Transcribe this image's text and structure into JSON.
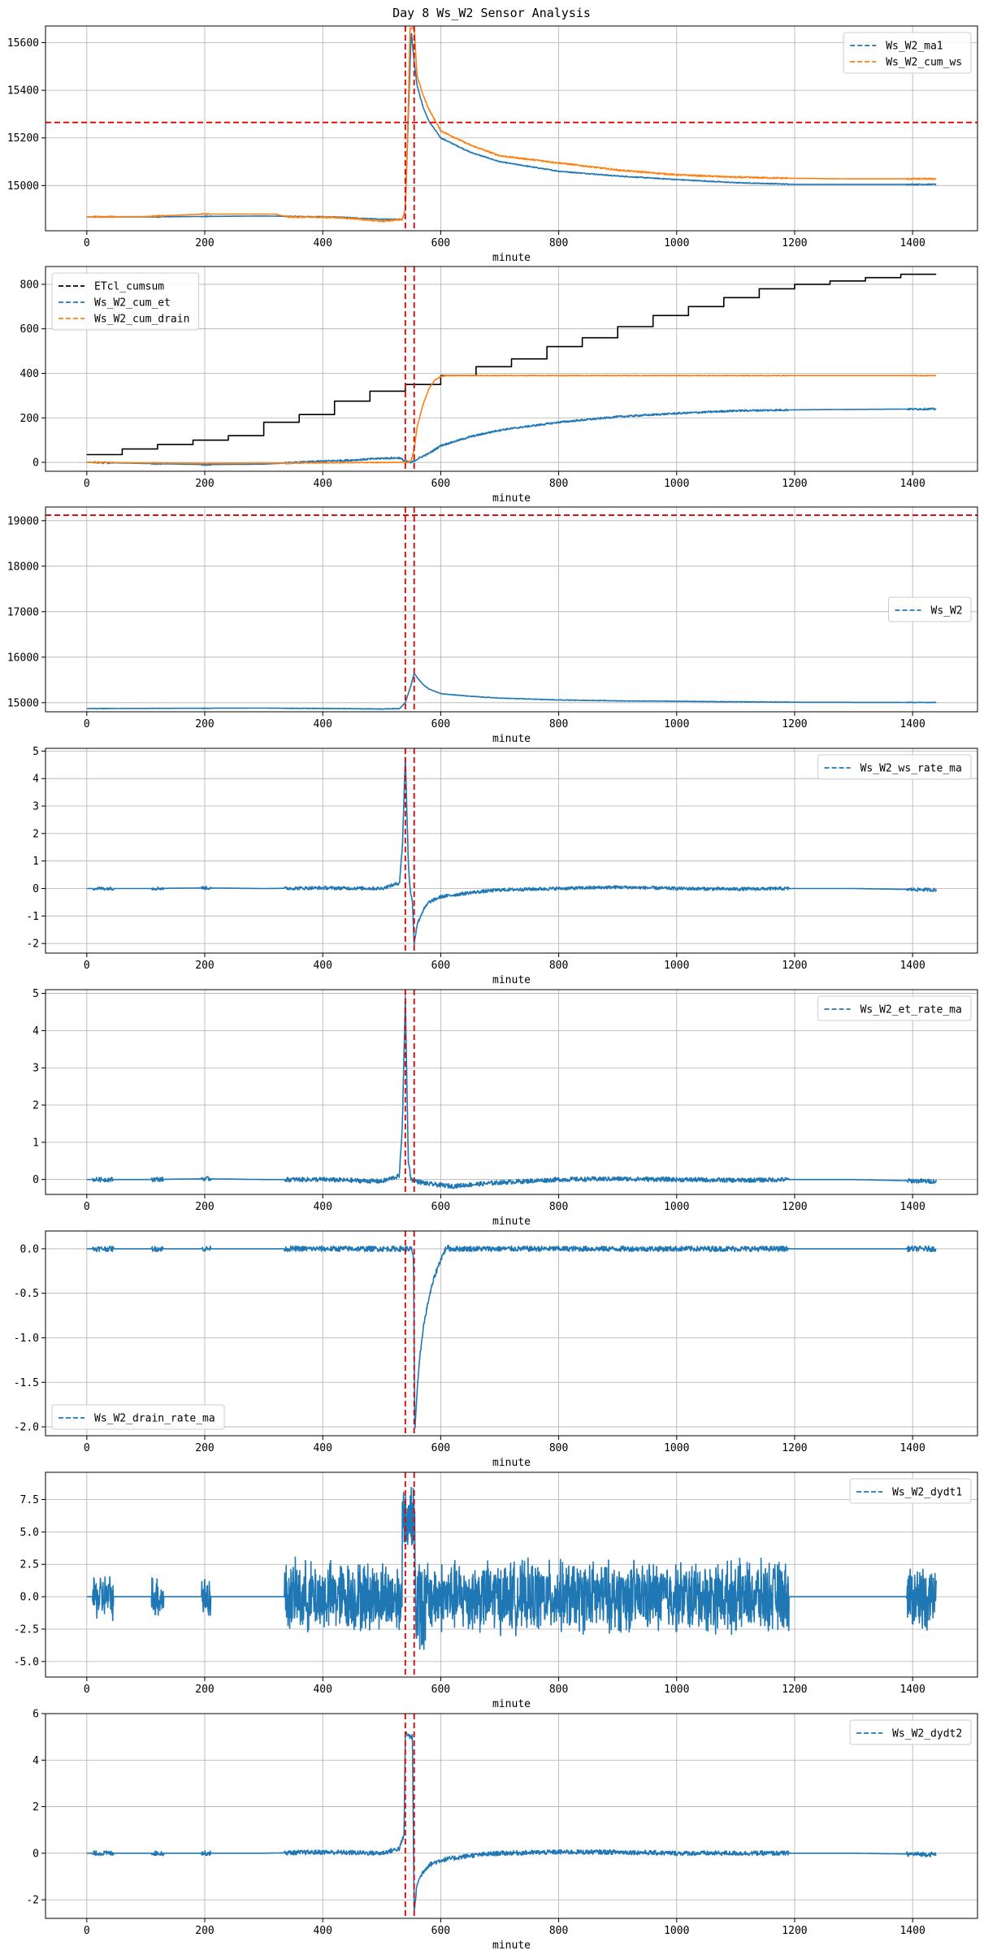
{
  "figure": {
    "title": "Day 8 Ws_W2 Sensor Analysis"
  },
  "colors": {
    "blue": "#1f77b4",
    "orange": "#ff7f0e",
    "black": "#000000",
    "red": "#e00000",
    "grid": "#b0b0b0"
  },
  "chart_data": [
    {
      "type": "line",
      "xlabel": "minute",
      "xlim": [
        -70,
        1510
      ],
      "ylim": [
        14810,
        15670
      ],
      "yticks": [
        15000,
        15200,
        15400,
        15600
      ],
      "xticks": [
        0,
        200,
        400,
        600,
        800,
        1000,
        1200,
        1400
      ],
      "grid": true,
      "legend": {
        "loc": "upper right",
        "entries": [
          "Ws_W2_ma1",
          "Ws_W2_cum_ws"
        ]
      },
      "vlines": [
        540,
        555
      ],
      "hlines": [
        15265
      ],
      "series": [
        {
          "name": "Ws_W2_ma1",
          "color": "blue",
          "style": "solid",
          "noise": 2,
          "x": [
            0,
            100,
            200,
            300,
            350,
            420,
            500,
            535,
            540,
            545,
            550,
            555,
            560,
            570,
            580,
            600,
            650,
            700,
            800,
            900,
            1000,
            1100,
            1200,
            1300,
            1440
          ],
          "y": [
            14868,
            14868,
            14870,
            14872,
            14870,
            14868,
            14858,
            14858,
            14900,
            15280,
            15650,
            15520,
            15420,
            15330,
            15270,
            15200,
            15140,
            15100,
            15060,
            15040,
            15025,
            15012,
            15005,
            15005,
            15005
          ]
        },
        {
          "name": "Ws_W2_cum_ws",
          "color": "orange",
          "style": "solid",
          "noise": 3,
          "x": [
            0,
            100,
            200,
            320,
            340,
            420,
            460,
            480,
            500,
            535,
            540,
            545,
            548,
            555,
            560,
            570,
            580,
            600,
            650,
            700,
            800,
            900,
            1000,
            1100,
            1200,
            1300,
            1440
          ],
          "y": [
            14868,
            14870,
            14880,
            14880,
            14868,
            14866,
            14860,
            14854,
            14850,
            14858,
            14900,
            15320,
            15660,
            15660,
            15460,
            15380,
            15320,
            15230,
            15170,
            15125,
            15095,
            15065,
            15045,
            15035,
            15030,
            15028,
            15028
          ]
        }
      ]
    },
    {
      "type": "line",
      "xlabel": "minute",
      "xlim": [
        -70,
        1510
      ],
      "ylim": [
        -40,
        880
      ],
      "yticks": [
        0,
        200,
        400,
        600,
        800
      ],
      "xticks": [
        0,
        200,
        400,
        600,
        800,
        1000,
        1200,
        1400
      ],
      "grid": true,
      "legend": {
        "loc": "upper left",
        "entries": [
          "ETcl_cumsum",
          "Ws_W2_cum_et",
          "Ws_W2_cum_drain"
        ]
      },
      "vlines": [
        540,
        555
      ],
      "hlines": [],
      "series": [
        {
          "name": "ETcl_cumsum",
          "color": "black",
          "style": "step",
          "noise": 0,
          "x": [
            0,
            60,
            120,
            180,
            240,
            300,
            360,
            420,
            480,
            540,
            600,
            660,
            720,
            780,
            840,
            900,
            960,
            1020,
            1080,
            1140,
            1200,
            1260,
            1320,
            1380,
            1440
          ],
          "y": [
            35,
            60,
            80,
            100,
            120,
            180,
            215,
            275,
            320,
            350,
            390,
            430,
            465,
            520,
            560,
            610,
            660,
            700,
            740,
            780,
            800,
            815,
            830,
            845,
            845
          ]
        },
        {
          "name": "Ws_W2_cum_et",
          "color": "blue",
          "style": "solid",
          "noise": 4,
          "x": [
            0,
            200,
            300,
            400,
            450,
            500,
            530,
            540,
            550,
            560,
            580,
            600,
            650,
            700,
            800,
            900,
            1000,
            1100,
            1200,
            1300,
            1440
          ],
          "y": [
            0,
            -10,
            -8,
            5,
            10,
            18,
            20,
            5,
            -2,
            15,
            40,
            75,
            115,
            145,
            180,
            205,
            220,
            232,
            236,
            238,
            240
          ]
        },
        {
          "name": "Ws_W2_cum_drain",
          "color": "orange",
          "style": "solid",
          "noise": 1.5,
          "x": [
            0,
            200,
            400,
            530,
            545,
            550,
            555,
            560,
            570,
            580,
            590,
            600,
            610,
            620,
            700,
            800,
            1000,
            1440
          ],
          "y": [
            0,
            -5,
            -2,
            0,
            0,
            8,
            60,
            160,
            260,
            330,
            370,
            385,
            390,
            390,
            390,
            390,
            390,
            390
          ]
        }
      ]
    },
    {
      "type": "line",
      "xlabel": "minute",
      "xlim": [
        -70,
        1510
      ],
      "ylim": [
        14800,
        19300
      ],
      "yticks": [
        15000,
        16000,
        17000,
        18000,
        19000
      ],
      "xticks": [
        0,
        200,
        400,
        600,
        800,
        1000,
        1200,
        1400
      ],
      "grid": true,
      "legend": {
        "loc": "center right",
        "entries": [
          "Ws_W2"
        ]
      },
      "vlines": [
        540,
        555
      ],
      "hlines": [
        19120
      ],
      "series": [
        {
          "name": "Ws_W2",
          "color": "blue",
          "style": "solid",
          "noise": 6,
          "x": [
            0,
            200,
            300,
            400,
            500,
            530,
            540,
            550,
            555,
            560,
            570,
            580,
            600,
            650,
            700,
            800,
            900,
            1000,
            1200,
            1440
          ],
          "y": [
            14870,
            14878,
            14880,
            14872,
            14862,
            14870,
            15000,
            15400,
            15650,
            15550,
            15400,
            15300,
            15200,
            15140,
            15100,
            15060,
            15040,
            15030,
            15010,
            15005
          ]
        }
      ]
    },
    {
      "type": "line",
      "xlabel": "minute",
      "xlim": [
        -70,
        1510
      ],
      "ylim": [
        -2.35,
        5.1
      ],
      "yticks": [
        -2,
        -1,
        0,
        1,
        2,
        3,
        4,
        5
      ],
      "xticks": [
        0,
        200,
        400,
        600,
        800,
        1000,
        1200,
        1400
      ],
      "grid": true,
      "legend": {
        "loc": "upper right",
        "entries": [
          "Ws_W2_ws_rate_ma"
        ]
      },
      "vlines": [
        540,
        555
      ],
      "hlines": [],
      "series": [
        {
          "name": "Ws_W2_ws_rate_ma",
          "color": "blue",
          "style": "solid",
          "noise": 0.06,
          "x": [
            0,
            100,
            200,
            300,
            400,
            500,
            530,
            535,
            540,
            545,
            548,
            552,
            555,
            560,
            570,
            580,
            600,
            650,
            700,
            800,
            900,
            1000,
            1100,
            1200,
            1300,
            1440
          ],
          "y": [
            0,
            0,
            0.02,
            0,
            0.02,
            0,
            0.2,
            1.5,
            4.8,
            1.0,
            0,
            -0.5,
            -2.0,
            -1.3,
            -0.8,
            -0.5,
            -0.3,
            -0.15,
            -0.05,
            0,
            0.05,
            0,
            -0.02,
            0,
            0,
            -0.05
          ]
        }
      ]
    },
    {
      "type": "line",
      "xlabel": "minute",
      "xlim": [
        -70,
        1510
      ],
      "ylim": [
        -0.4,
        5.1
      ],
      "yticks": [
        0,
        1,
        2,
        3,
        4,
        5
      ],
      "xticks": [
        0,
        200,
        400,
        600,
        800,
        1000,
        1200,
        1400
      ],
      "grid": true,
      "legend": {
        "loc": "upper right",
        "entries": [
          "Ws_W2_et_rate_ma"
        ]
      },
      "vlines": [
        540,
        555
      ],
      "hlines": [],
      "series": [
        {
          "name": "Ws_W2_et_rate_ma",
          "color": "blue",
          "style": "solid",
          "noise": 0.06,
          "x": [
            0,
            100,
            200,
            300,
            400,
            500,
            530,
            535,
            540,
            545,
            550,
            555,
            560,
            580,
            600,
            620,
            640,
            700,
            800,
            900,
            1000,
            1100,
            1200,
            1300,
            1440
          ],
          "y": [
            0,
            0,
            0.02,
            0,
            0,
            -0.05,
            0.1,
            1.5,
            4.9,
            0.5,
            0,
            -0.02,
            -0.05,
            -0.12,
            -0.15,
            -0.18,
            -0.15,
            -0.08,
            0,
            0.02,
            0,
            -0.02,
            0,
            0,
            -0.05
          ]
        }
      ]
    },
    {
      "type": "line",
      "xlabel": "minute",
      "xlim": [
        -70,
        1510
      ],
      "ylim": [
        -2.1,
        0.2
      ],
      "yticks": [
        -2.0,
        -1.5,
        -1.0,
        -0.5,
        0.0
      ],
      "xticks": [
        0,
        200,
        400,
        600,
        800,
        1000,
        1200,
        1400
      ],
      "grid": true,
      "legend": {
        "loc": "lower left",
        "entries": [
          "Ws_W2_drain_rate_ma"
        ]
      },
      "vlines": [
        540,
        555
      ],
      "hlines": [],
      "series": [
        {
          "name": "Ws_W2_drain_rate_ma",
          "color": "blue",
          "style": "solid",
          "noise": 0.03,
          "x": [
            0,
            200,
            400,
            540,
            550,
            554,
            556,
            560,
            565,
            570,
            580,
            590,
            600,
            610,
            615,
            700,
            800,
            1000,
            1440
          ],
          "y": [
            0,
            0,
            0,
            0,
            0,
            -0.1,
            -2.05,
            -1.6,
            -1.2,
            -0.9,
            -0.55,
            -0.3,
            -0.12,
            0.02,
            0,
            0,
            0,
            0,
            0
          ]
        }
      ]
    },
    {
      "type": "line",
      "xlabel": "minute",
      "xlim": [
        -70,
        1510
      ],
      "ylim": [
        -6.2,
        9.6
      ],
      "yticks": [
        -5.0,
        -2.5,
        0.0,
        2.5,
        5.0,
        7.5
      ],
      "xticks": [
        0,
        200,
        400,
        600,
        800,
        1000,
        1200,
        1400
      ],
      "grid": true,
      "legend": {
        "loc": "upper right",
        "entries": [
          "Ws_W2_dydt1"
        ]
      },
      "vlines": [
        540,
        555
      ],
      "hlines": [],
      "series": [
        {
          "name": "Ws_W2_dydt1",
          "color": "blue",
          "style": "solid",
          "noise": 0,
          "x": [
            0,
            1440
          ],
          "y": [
            0,
            0
          ]
        }
      ]
    },
    {
      "type": "line",
      "xlabel": "minute",
      "xlim": [
        -70,
        1510
      ],
      "ylim": [
        -2.8,
        6.0
      ],
      "yticks": [
        -2,
        0,
        2,
        4,
        6
      ],
      "xticks": [
        0,
        200,
        400,
        600,
        800,
        1000,
        1200,
        1400
      ],
      "grid": true,
      "legend": {
        "loc": "upper right",
        "entries": [
          "Ws_W2_dydt2"
        ]
      },
      "vlines": [
        540,
        555
      ],
      "hlines": [],
      "series": [
        {
          "name": "Ws_W2_dydt2",
          "color": "blue",
          "style": "solid",
          "noise": 0.1,
          "x": [
            0,
            100,
            200,
            300,
            400,
            500,
            530,
            538,
            540,
            548,
            552,
            555,
            558,
            560,
            570,
            580,
            600,
            650,
            700,
            800,
            900,
            1000,
            1100,
            1200,
            1300,
            1440
          ],
          "y": [
            0,
            0,
            0,
            0,
            0.05,
            0,
            0.2,
            0.8,
            5.2,
            5.0,
            5.0,
            -2.5,
            -1.8,
            -1.3,
            -0.8,
            -0.5,
            -0.3,
            -0.1,
            0,
            0.05,
            0.05,
            0,
            0,
            0,
            0,
            -0.05
          ]
        }
      ]
    }
  ]
}
